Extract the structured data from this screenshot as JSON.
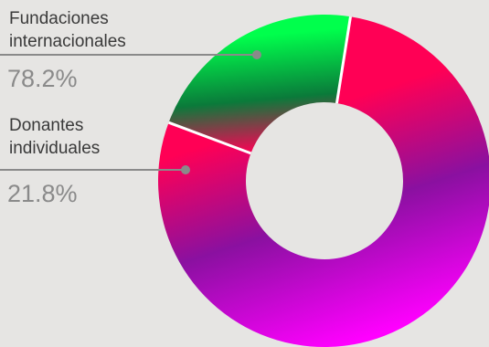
{
  "chart_data": {
    "type": "pie",
    "donut": true,
    "title": "",
    "slices": [
      {
        "label_lines": [
          "Fundaciones",
          "internacionales"
        ],
        "value": 78.2,
        "value_label": "78.2%",
        "colors": [
          "#ff00ff",
          "#8a10a0",
          "#ff0055"
        ]
      },
      {
        "label_lines": [
          "Donantes",
          "individuales"
        ],
        "value": 21.8,
        "value_label": "21.8%",
        "colors": [
          "#00ff4c",
          "#0a7a3a",
          "#ff0055"
        ]
      }
    ],
    "legend": "none",
    "background": "#e6e5e3",
    "leader_color": "#8a8a8a"
  }
}
